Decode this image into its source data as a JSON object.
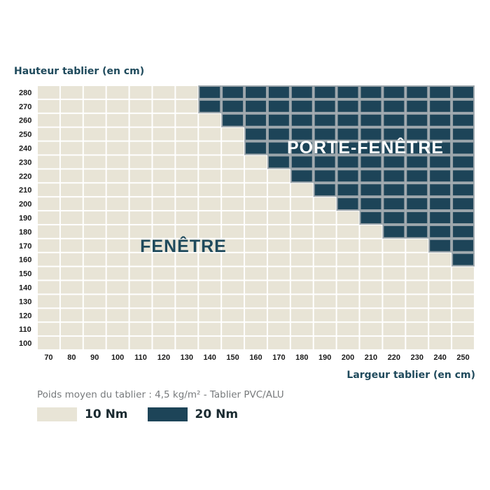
{
  "chart_data": {
    "type": "heatmap",
    "ylabel": "Hauteur tablier (en cm)",
    "xlabel": "Largeur tablier (en cm)",
    "x": [
      70,
      80,
      90,
      100,
      110,
      120,
      130,
      140,
      150,
      160,
      170,
      180,
      190,
      200,
      210,
      220,
      230,
      240,
      250
    ],
    "y": [
      280,
      270,
      260,
      250,
      240,
      230,
      220,
      210,
      200,
      190,
      180,
      170,
      160,
      150,
      140,
      130,
      120,
      110,
      100
    ],
    "first_20nm_width_by_height": {
      "280": 140,
      "270": 140,
      "260": 150,
      "250": 160,
      "240": 160,
      "230": 170,
      "220": 180,
      "210": 190,
      "200": 200,
      "190": 210,
      "180": 220,
      "170": 240,
      "160": 250
    },
    "zones": {
      "fenetre": "FENÊTRE",
      "porte_fenetre": "PORTE-FENÊTRE"
    },
    "colors": {
      "10 Nm": "#e8e4d6",
      "20 Nm": "#1d4458",
      "grid": "#ffffff",
      "border_20nm": "#9aa4aa"
    },
    "note": "Poids moyen du tablier : 4,5 kg/m² - Tablier PVC/ALU",
    "legend": [
      {
        "label": "10 Nm",
        "color": "#e8e4d6"
      },
      {
        "label": "20 Nm",
        "color": "#1d4458"
      }
    ]
  }
}
